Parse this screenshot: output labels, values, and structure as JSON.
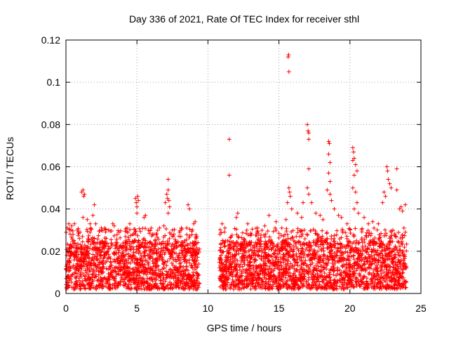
{
  "chart_data": {
    "type": "scatter",
    "title": "Day 336 of 2021, Rate Of TEC Index for receiver sthl",
    "xlabel": "GPS time / hours",
    "ylabel": "ROTI / TECUs",
    "xlim": [
      0,
      25
    ],
    "ylim": [
      0,
      0.12
    ],
    "xticks": [
      0,
      5,
      10,
      15,
      20,
      25
    ],
    "yticks": [
      0,
      0.02,
      0.04,
      0.06,
      0.08,
      0.1,
      0.12
    ],
    "xtick_labels": [
      "0",
      "5",
      "10",
      "15",
      "20",
      "25"
    ],
    "ytick_labels": [
      "0",
      "0.02",
      "0.04",
      "0.06",
      "0.08",
      "0.1",
      "0.12"
    ],
    "grid": true,
    "marker": "+",
    "color": "#ff0000",
    "series": [
      {
        "name": "ROTI",
        "note": "dense band of points 0.002-0.025 TECUs from 0-9.4 h and 10.8-24 h; data gap ~9.4-10.8 h",
        "points": [
          [
            0.1,
            0.031
          ],
          [
            0.2,
            0.033
          ],
          [
            0.4,
            0.032
          ],
          [
            0.5,
            0.028
          ],
          [
            0.6,
            0.033
          ],
          [
            0.8,
            0.03
          ],
          [
            1.1,
            0.048
          ],
          [
            1.2,
            0.049
          ],
          [
            1.25,
            0.046
          ],
          [
            1.3,
            0.047
          ],
          [
            1.2,
            0.036
          ],
          [
            1.5,
            0.035
          ],
          [
            1.7,
            0.033
          ],
          [
            1.9,
            0.037
          ],
          [
            2.0,
            0.042
          ],
          [
            2.1,
            0.033
          ],
          [
            2.5,
            0.031
          ],
          [
            3.0,
            0.03
          ],
          [
            3.3,
            0.033
          ],
          [
            3.4,
            0.032
          ],
          [
            4.3,
            0.031
          ],
          [
            4.5,
            0.033
          ],
          [
            4.9,
            0.045
          ],
          [
            4.95,
            0.043
          ],
          [
            5.0,
            0.041
          ],
          [
            5.05,
            0.046
          ],
          [
            5.1,
            0.044
          ],
          [
            5.0,
            0.038
          ],
          [
            5.5,
            0.036
          ],
          [
            5.6,
            0.037
          ],
          [
            5.8,
            0.03
          ],
          [
            6.2,
            0.028
          ],
          [
            6.6,
            0.031
          ],
          [
            6.9,
            0.032
          ],
          [
            7.0,
            0.043
          ],
          [
            7.1,
            0.047
          ],
          [
            7.15,
            0.045
          ],
          [
            7.2,
            0.054
          ],
          [
            7.2,
            0.049
          ],
          [
            7.25,
            0.044
          ],
          [
            7.3,
            0.041
          ],
          [
            7.2,
            0.038
          ],
          [
            7.5,
            0.03
          ],
          [
            8.0,
            0.029
          ],
          [
            8.5,
            0.031
          ],
          [
            8.6,
            0.042
          ],
          [
            8.7,
            0.04
          ],
          [
            9.0,
            0.033
          ],
          [
            9.1,
            0.034
          ],
          [
            11.0,
            0.033
          ],
          [
            11.2,
            0.031
          ],
          [
            11.5,
            0.073
          ],
          [
            11.5,
            0.056
          ],
          [
            12.0,
            0.036
          ],
          [
            12.1,
            0.038
          ],
          [
            12.8,
            0.033
          ],
          [
            13.5,
            0.031
          ],
          [
            14.0,
            0.032
          ],
          [
            14.3,
            0.037
          ],
          [
            14.8,
            0.034
          ],
          [
            15.2,
            0.031
          ],
          [
            15.5,
            0.035
          ],
          [
            15.65,
            0.112
          ],
          [
            15.68,
            0.113
          ],
          [
            15.7,
            0.105
          ],
          [
            15.7,
            0.05
          ],
          [
            15.75,
            0.048
          ],
          [
            15.8,
            0.046
          ],
          [
            15.6,
            0.043
          ],
          [
            15.9,
            0.04
          ],
          [
            16.3,
            0.038
          ],
          [
            16.6,
            0.036
          ],
          [
            16.7,
            0.043
          ],
          [
            17.0,
            0.08
          ],
          [
            17.05,
            0.077
          ],
          [
            17.1,
            0.076
          ],
          [
            17.1,
            0.073
          ],
          [
            17.1,
            0.059
          ],
          [
            17.0,
            0.05
          ],
          [
            17.1,
            0.047
          ],
          [
            17.3,
            0.043
          ],
          [
            17.6,
            0.038
          ],
          [
            17.9,
            0.037
          ],
          [
            18.1,
            0.035
          ],
          [
            18.5,
            0.072
          ],
          [
            18.55,
            0.071
          ],
          [
            18.5,
            0.066
          ],
          [
            18.6,
            0.062
          ],
          [
            18.5,
            0.057
          ],
          [
            18.6,
            0.053
          ],
          [
            18.4,
            0.049
          ],
          [
            18.6,
            0.047
          ],
          [
            18.7,
            0.044
          ],
          [
            18.9,
            0.04
          ],
          [
            19.2,
            0.037
          ],
          [
            19.4,
            0.036
          ],
          [
            19.8,
            0.033
          ],
          [
            20.2,
            0.069
          ],
          [
            20.25,
            0.067
          ],
          [
            20.3,
            0.064
          ],
          [
            20.2,
            0.063
          ],
          [
            20.4,
            0.061
          ],
          [
            20.5,
            0.058
          ],
          [
            20.3,
            0.056
          ],
          [
            20.2,
            0.05
          ],
          [
            20.4,
            0.048
          ],
          [
            20.5,
            0.043
          ],
          [
            20.3,
            0.04
          ],
          [
            20.6,
            0.038
          ],
          [
            21.0,
            0.036
          ],
          [
            21.3,
            0.033
          ],
          [
            21.6,
            0.034
          ],
          [
            22.0,
            0.033
          ],
          [
            22.3,
            0.043
          ],
          [
            22.4,
            0.048
          ],
          [
            22.5,
            0.046
          ],
          [
            22.6,
            0.06
          ],
          [
            22.65,
            0.058
          ],
          [
            22.7,
            0.054
          ],
          [
            22.8,
            0.052
          ],
          [
            22.9,
            0.05
          ],
          [
            23.3,
            0.059
          ],
          [
            23.3,
            0.049
          ],
          [
            23.5,
            0.04
          ],
          [
            23.6,
            0.041
          ],
          [
            23.7,
            0.039
          ],
          [
            23.9,
            0.042
          ],
          [
            23.8,
            0.031
          ],
          [
            23.9,
            0.029
          ]
        ]
      }
    ],
    "bands": [
      {
        "x_start": 0.0,
        "x_end": 9.4,
        "y_low": 0.002,
        "y_high": 0.025
      },
      {
        "x_start": 10.8,
        "x_end": 24.0,
        "y_low": 0.002,
        "y_high": 0.025
      }
    ]
  }
}
